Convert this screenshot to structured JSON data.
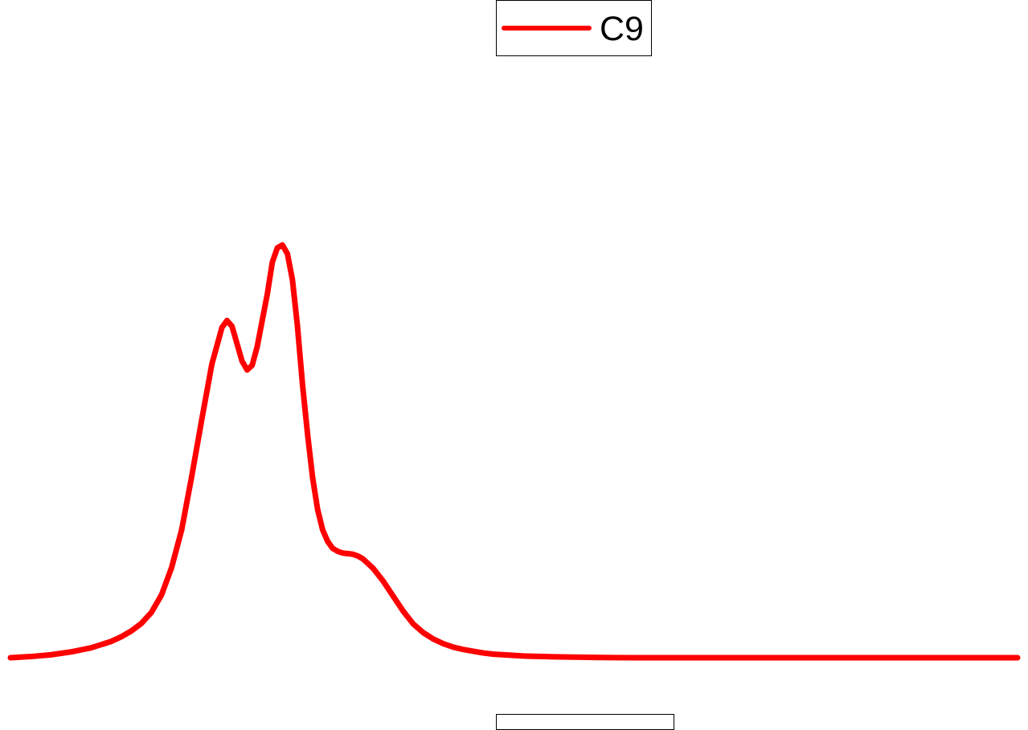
{
  "chart_data": {
    "type": "line",
    "title": "",
    "xlabel": "",
    "ylabel": "",
    "grid": false,
    "legend": "top-center",
    "xlim": [
      0,
      100
    ],
    "ylim": [
      0,
      100
    ],
    "series": [
      {
        "name": "C9",
        "color": "#ff0000",
        "x": [
          0,
          2,
          4,
          6,
          8,
          10,
          11,
          12,
          13,
          14,
          15,
          16,
          17,
          18,
          19,
          20,
          21,
          21.5,
          22,
          22.5,
          23,
          23.5,
          24,
          24.5,
          25,
          25.5,
          26,
          26.5,
          27,
          27.5,
          28,
          28.5,
          29,
          29.5,
          30,
          30.5,
          31,
          31.5,
          32,
          32.5,
          33,
          33.5,
          34,
          34.5,
          35,
          35.5,
          36,
          37,
          38,
          39,
          40,
          41,
          42,
          43,
          44,
          45,
          46,
          47,
          48,
          49,
          50,
          51,
          52,
          53,
          54,
          56,
          58,
          60,
          62,
          64,
          66,
          70,
          75,
          80,
          85,
          90,
          95,
          100
        ],
        "y": [
          0,
          0.2,
          0.5,
          1.0,
          1.7,
          2.8,
          3.6,
          4.6,
          5.9,
          7.8,
          10.8,
          15.5,
          22.0,
          31.2,
          41.0,
          50.5,
          56.8,
          58.0,
          57.0,
          54.0,
          51.0,
          49.5,
          50.3,
          53.5,
          58.0,
          62.5,
          68.0,
          70.5,
          71.0,
          69.5,
          65.0,
          57.0,
          47.0,
          38.5,
          31.0,
          25.5,
          22.0,
          20.0,
          18.8,
          18.3,
          18.0,
          17.9,
          17.8,
          17.5,
          17.0,
          16.2,
          15.4,
          13.2,
          10.6,
          8.0,
          5.8,
          4.3,
          3.2,
          2.4,
          1.8,
          1.4,
          1.1,
          0.8,
          0.6,
          0.5,
          0.4,
          0.3,
          0.25,
          0.2,
          0.15,
          0.1,
          0.05,
          0.02,
          0,
          0,
          0,
          0,
          0,
          0,
          0,
          0,
          0,
          0
        ]
      }
    ]
  }
}
